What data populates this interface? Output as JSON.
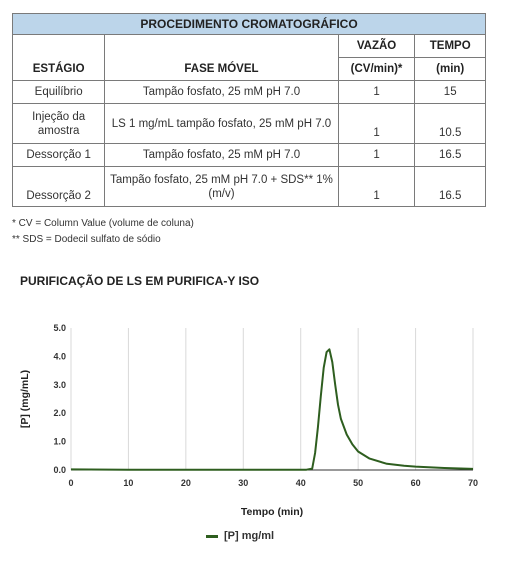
{
  "table": {
    "title": "PROCEDIMENTO CROMATOGRÁFICO",
    "headers": {
      "stage": "ESTÁGIO",
      "mobile_phase": "FASE MÓVEL",
      "flow_top": "VAZÃO",
      "flow_bottom": "(CV/min)*",
      "time_top": "TEMPO",
      "time_bottom": "(min)"
    },
    "rows": [
      {
        "stage": "Equilíbrio",
        "phase": "Tampão fosfato, 25 mM pH 7.0",
        "flow": "1",
        "time": "15"
      },
      {
        "stage": "Injeção da amostra",
        "phase": "LS 1 mg/mL tampão fosfato, 25 mM pH 7.0",
        "flow": "1",
        "time": "10.5"
      },
      {
        "stage": "Dessorção 1",
        "phase": "Tampão fosfato, 25 mM pH 7.0",
        "flow": "1",
        "time": "16.5"
      },
      {
        "stage": "Dessorção 2",
        "phase": "Tampão fosfato, 25 mM pH 7.0 + SDS** 1% (m/v)",
        "flow": "1",
        "time": "16.5"
      }
    ]
  },
  "notes": {
    "cv": "* CV = Column Value (volume de coluna)",
    "sds": "** SDS = Dodecil sulfato de sódio"
  },
  "chart_data": {
    "type": "line",
    "title": "PURIFICAÇÃO DE LS EM PURIFICA-Y ISO",
    "xlabel": "Tempo (min)",
    "ylabel": "[P] (mg/mL)",
    "xlim": [
      0,
      70
    ],
    "ylim": [
      0,
      5.0
    ],
    "xticks": [
      "0",
      "10",
      "20",
      "30",
      "40",
      "50",
      "60",
      "70"
    ],
    "yticks": [
      "0.0",
      "1.0",
      "2.0",
      "3.0",
      "4.0",
      "5.0"
    ],
    "grid": "vertical",
    "legend_position": "bottom",
    "color": "#2e5e1f",
    "series": [
      {
        "name": "[P] mg/ml",
        "x": [
          0,
          10,
          20,
          30,
          40,
          41,
          42,
          42.5,
          43,
          43.5,
          44,
          44.5,
          45,
          45.5,
          46,
          46.5,
          47,
          48,
          49,
          50,
          52,
          55,
          58,
          60,
          65,
          70
        ],
        "y": [
          0.02,
          0.01,
          0.01,
          0.01,
          0.01,
          0.01,
          0.05,
          0.6,
          1.5,
          2.6,
          3.6,
          4.15,
          4.25,
          3.8,
          3.0,
          2.3,
          1.8,
          1.25,
          0.9,
          0.65,
          0.4,
          0.22,
          0.15,
          0.12,
          0.07,
          0.04
        ]
      }
    ]
  }
}
